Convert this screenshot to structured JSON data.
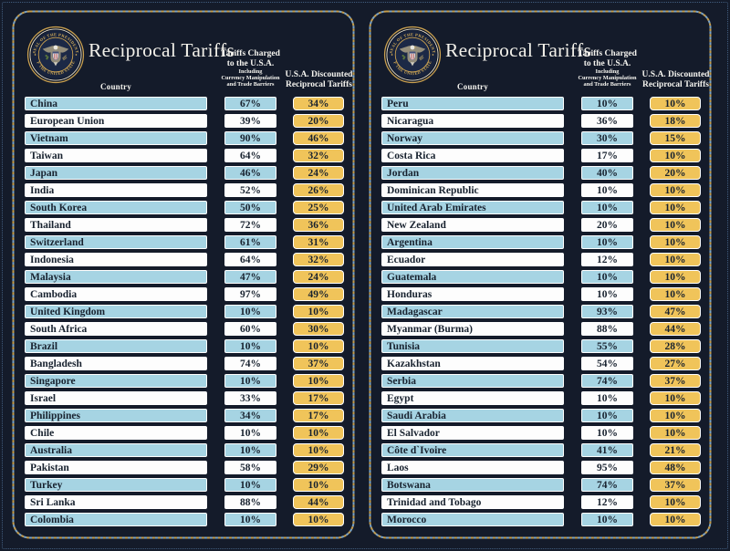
{
  "chart_data": {
    "type": "table",
    "title": "Reciprocal Tariffs",
    "columns": [
      "Country",
      "Tariffs Charged to the U.S.A. Including Currency Manipulation and Trade Barriers",
      "U.S.A. Discounted Reciprocal Tariffs"
    ],
    "panels": [
      {
        "rows": [
          [
            "China",
            "67%",
            "34%"
          ],
          [
            "European Union",
            "39%",
            "20%"
          ],
          [
            "Vietnam",
            "90%",
            "46%"
          ],
          [
            "Taiwan",
            "64%",
            "32%"
          ],
          [
            "Japan",
            "46%",
            "24%"
          ],
          [
            "India",
            "52%",
            "26%"
          ],
          [
            "South Korea",
            "50%",
            "25%"
          ],
          [
            "Thailand",
            "72%",
            "36%"
          ],
          [
            "Switzerland",
            "61%",
            "31%"
          ],
          [
            "Indonesia",
            "64%",
            "32%"
          ],
          [
            "Malaysia",
            "47%",
            "24%"
          ],
          [
            "Cambodia",
            "97%",
            "49%"
          ],
          [
            "United Kingdom",
            "10%",
            "10%"
          ],
          [
            "South Africa",
            "60%",
            "30%"
          ],
          [
            "Brazil",
            "10%",
            "10%"
          ],
          [
            "Bangladesh",
            "74%",
            "37%"
          ],
          [
            "Singapore",
            "10%",
            "10%"
          ],
          [
            "Israel",
            "33%",
            "17%"
          ],
          [
            "Philippines",
            "34%",
            "17%"
          ],
          [
            "Chile",
            "10%",
            "10%"
          ],
          [
            "Australia",
            "10%",
            "10%"
          ],
          [
            "Pakistan",
            "58%",
            "29%"
          ],
          [
            "Turkey",
            "10%",
            "10%"
          ],
          [
            "Sri Lanka",
            "88%",
            "44%"
          ],
          [
            "Colombia",
            "10%",
            "10%"
          ]
        ]
      },
      {
        "rows": [
          [
            "Peru",
            "10%",
            "10%"
          ],
          [
            "Nicaragua",
            "36%",
            "18%"
          ],
          [
            "Norway",
            "30%",
            "15%"
          ],
          [
            "Costa Rica",
            "17%",
            "10%"
          ],
          [
            "Jordan",
            "40%",
            "20%"
          ],
          [
            "Dominican Republic",
            "10%",
            "10%"
          ],
          [
            "United Arab Emirates",
            "10%",
            "10%"
          ],
          [
            "New Zealand",
            "20%",
            "10%"
          ],
          [
            "Argentina",
            "10%",
            "10%"
          ],
          [
            "Ecuador",
            "12%",
            "10%"
          ],
          [
            "Guatemala",
            "10%",
            "10%"
          ],
          [
            "Honduras",
            "10%",
            "10%"
          ],
          [
            "Madagascar",
            "93%",
            "47%"
          ],
          [
            "Myanmar (Burma)",
            "88%",
            "44%"
          ],
          [
            "Tunisia",
            "55%",
            "28%"
          ],
          [
            "Kazakhstan",
            "54%",
            "27%"
          ],
          [
            "Serbia",
            "74%",
            "37%"
          ],
          [
            "Egypt",
            "10%",
            "10%"
          ],
          [
            "Saudi Arabia",
            "10%",
            "10%"
          ],
          [
            "El Salvador",
            "10%",
            "10%"
          ],
          [
            "Côte d`Ivoire",
            "41%",
            "21%"
          ],
          [
            "Laos",
            "95%",
            "48%"
          ],
          [
            "Botswana",
            "74%",
            "37%"
          ],
          [
            "Trinidad and Tobago",
            "12%",
            "10%"
          ],
          [
            "Morocco",
            "10%",
            "10%"
          ]
        ]
      }
    ]
  },
  "header": {
    "title": "Reciprocal Tariffs",
    "country_label": "Country",
    "charged_line1": "Tariffs Charged",
    "charged_line2": "to the U.S.A.",
    "charged_sub1": "Including",
    "charged_sub2": "Currency Manipulation",
    "charged_sub3": "and Trade Barriers",
    "discount_line1": "U.S.A. Discounted",
    "discount_line2": "Reciprocal Tariffs"
  },
  "seal": {
    "arc_top": "SEAL OF THE PRESIDENT",
    "arc_bottom": "OF THE UNITED STATES"
  },
  "colors": {
    "background": "#141b2a",
    "row_blue": "#a6d4e3",
    "row_white": "#fdfdfd",
    "gold": "#f0c45a",
    "cell_text": "#18222f",
    "dash_gold": "#c59c4a",
    "dash_blue": "#7aa3c6",
    "title_text": "#f3f1ea"
  }
}
